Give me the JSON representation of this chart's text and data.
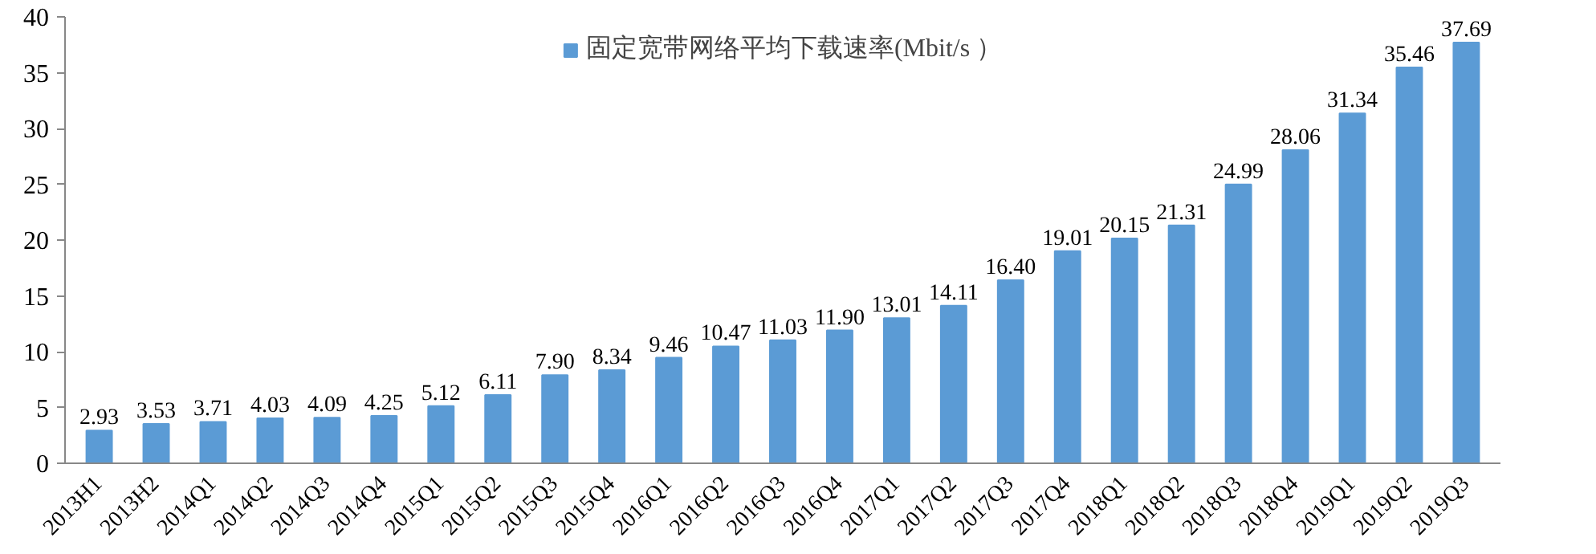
{
  "chart_data": {
    "type": "bar",
    "categories": [
      "2013H1",
      "2013H2",
      "2014Q1",
      "2014Q2",
      "2014Q3",
      "2014Q4",
      "2015Q1",
      "2015Q2",
      "2015Q3",
      "2015Q4",
      "2016Q1",
      "2016Q2",
      "2016Q3",
      "2016Q4",
      "2017Q1",
      "2017Q2",
      "2017Q3",
      "2017Q4",
      "2018Q1",
      "2018Q2",
      "2018Q3",
      "2018Q4",
      "2019Q1",
      "2019Q2",
      "2019Q3"
    ],
    "series": [
      {
        "name": "固定宽带网络平均下载速率(Mbit/s ）",
        "color": "#5b9bd5",
        "values": [
          2.93,
          3.53,
          3.71,
          4.03,
          4.09,
          4.25,
          5.12,
          6.11,
          7.9,
          8.34,
          9.46,
          10.47,
          11.03,
          11.9,
          13.01,
          14.11,
          16.4,
          19.01,
          20.15,
          21.31,
          24.99,
          28.06,
          31.34,
          35.46,
          37.69
        ],
        "value_labels": [
          "2.93",
          "3.53",
          "3.71",
          "4.03",
          "4.09",
          "4.25",
          "5.12",
          "6.11",
          "7.90",
          "8.34",
          "9.46",
          "10.47",
          "11.03",
          "11.90",
          "13.01",
          "14.11",
          "16.40",
          "19.01",
          "20.15",
          "21.31",
          "24.99",
          "28.06",
          "31.34",
          "35.46",
          "37.69"
        ]
      }
    ],
    "ylim": [
      0,
      40
    ],
    "yticks": [
      0,
      5,
      10,
      15,
      20,
      25,
      30,
      35,
      40
    ],
    "grid": false,
    "legend": "top"
  }
}
